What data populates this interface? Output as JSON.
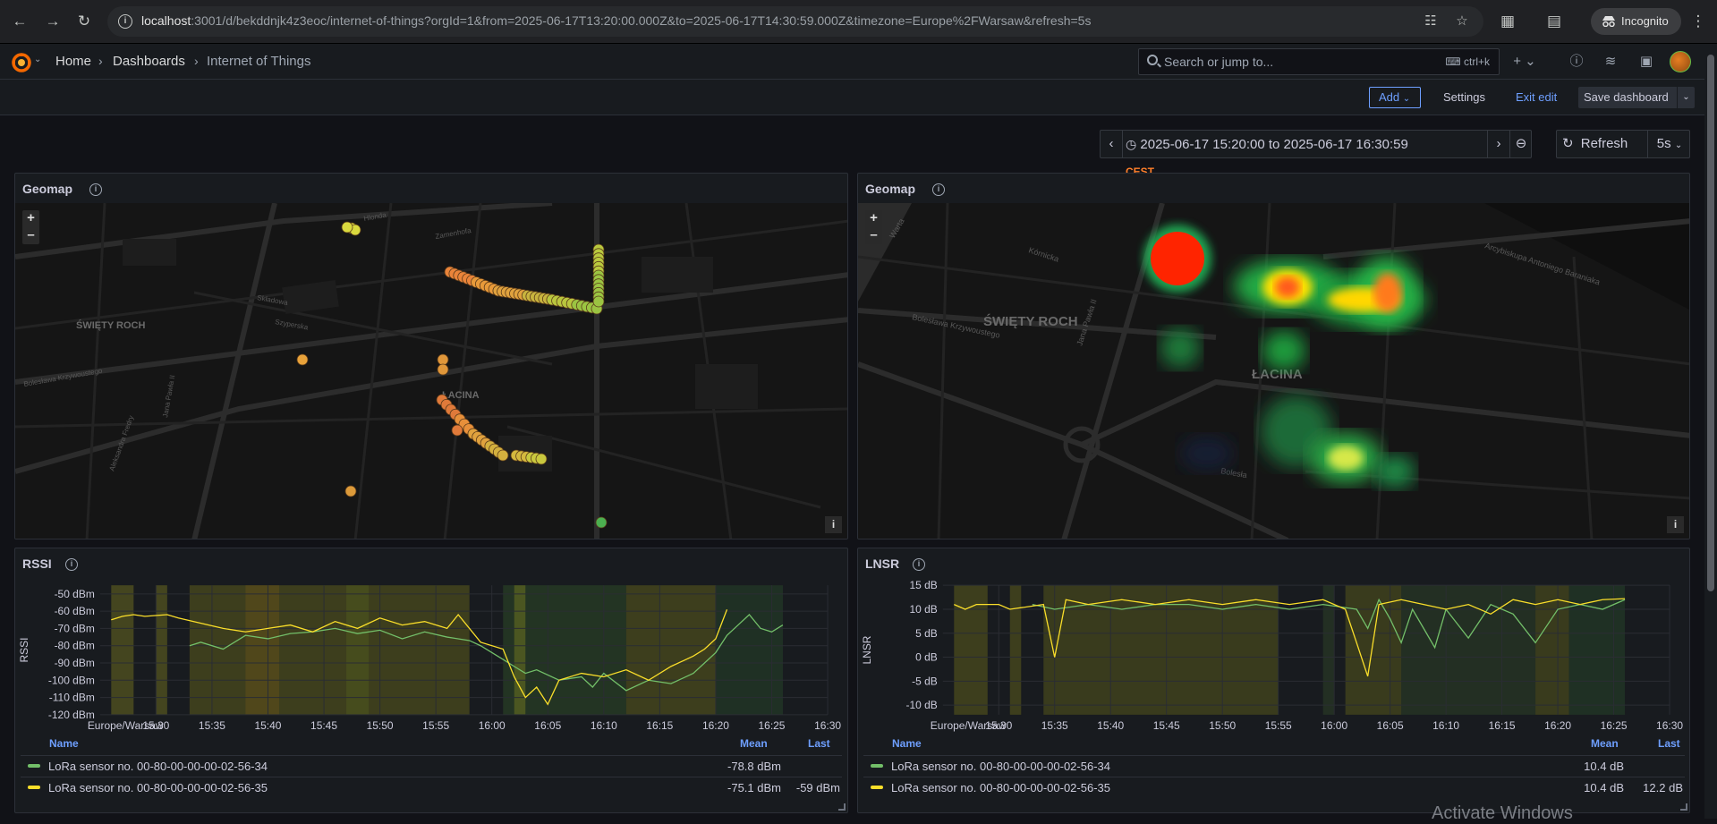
{
  "browser": {
    "url_host": "localhost",
    "url_rest": ":3001/d/bekddnjk4z3eoc/internet-of-things?orgId=1&from=2025-06-17T13:20:00.000Z&to=2025-06-17T14:30:59.000Z&timezone=Europe%2FWarsaw&refresh=5s",
    "incognito_label": "Incognito"
  },
  "topnav": {
    "breadcrumbs": [
      "Home",
      "Dashboards",
      "Internet of Things"
    ],
    "search_placeholder": "Search or jump to...",
    "search_shortcut": "ctrl+k"
  },
  "toolbar": {
    "add_label": "Add",
    "settings_label": "Settings",
    "exit_edit_label": "Exit edit",
    "save_label": "Save dashboard"
  },
  "timepicker": {
    "range": "2025-06-17 15:20:00 to 2025-06-17 16:30:59",
    "timezone": "CEST",
    "refresh_label": "Refresh",
    "refresh_interval": "5s"
  },
  "panels": {
    "geomap1": {
      "title": "Geomap",
      "labels": [
        "ŚWIĘTY ROCH",
        "ŁACINA",
        "Jana Pawła II",
        "Bolesława Krzywoustego",
        "Zamenhofa",
        "Hlonda",
        "Szyperska",
        "Składowa",
        "Aleksandra Fredry"
      ]
    },
    "geomap2": {
      "title": "Geomap",
      "labels": [
        "ŚWIĘTY ROCH",
        "ŁACINA",
        "Jana Pawła II",
        "Bolesława Krzywoustego",
        "Arcybiskupa Antoniego Baraniaka",
        "Warta",
        "Kórnicka",
        "Bolesła"
      ]
    },
    "rssi": {
      "title": "RSSI",
      "ylabel": "RSSI",
      "yticks": [
        "-50 dBm",
        "-60 dBm",
        "-70 dBm",
        "-80 dBm",
        "-90 dBm",
        "-100 dBm",
        "-110 dBm",
        "-120 dBm"
      ],
      "timezone_label": "Europe/Warsaw",
      "xticks": [
        "15:30",
        "15:35",
        "15:40",
        "15:45",
        "15:50",
        "15:55",
        "16:00",
        "16:05",
        "16:10",
        "16:15",
        "16:20",
        "16:25",
        "16:30"
      ],
      "legend_headers": {
        "name": "Name",
        "mean": "Mean",
        "last": "Last"
      },
      "series": [
        {
          "name": "LoRa sensor no. 00-80-00-00-00-02-56-34",
          "color": "#73bf69",
          "mean": "-78.8 dBm",
          "last": ""
        },
        {
          "name": "LoRa sensor no. 00-80-00-00-00-02-56-35",
          "color": "#fade2a",
          "mean": "-75.1 dBm",
          "last": "-59 dBm"
        }
      ]
    },
    "lnsr": {
      "title": "LNSR",
      "ylabel": "LNSR",
      "yticks": [
        "15 dB",
        "10 dB",
        "5 dB",
        "0 dB",
        "-5 dB",
        "-10 dB"
      ],
      "timezone_label": "Europe/Warsaw",
      "xticks": [
        "15:30",
        "15:35",
        "15:40",
        "15:45",
        "15:50",
        "15:55",
        "16:00",
        "16:05",
        "16:10",
        "16:15",
        "16:20",
        "16:25",
        "16:30"
      ],
      "legend_headers": {
        "name": "Name",
        "mean": "Mean",
        "last": "Last"
      },
      "series": [
        {
          "name": "LoRa sensor no. 00-80-00-00-00-02-56-34",
          "color": "#73bf69",
          "mean": "10.4 dB",
          "last": ""
        },
        {
          "name": "LoRa sensor no. 00-80-00-00-00-02-56-35",
          "color": "#fade2a",
          "mean": "10.4 dB",
          "last": "12.2 dB"
        }
      ]
    }
  },
  "chart_data": [
    {
      "type": "line",
      "title": "RSSI",
      "ylabel": "RSSI",
      "ylim": [
        -120,
        -45
      ],
      "xlim": [
        "15:25",
        "16:30"
      ],
      "series": [
        {
          "name": "LoRa sensor no. 00-80-00-00-00-02-56-34",
          "color": "#73bf69",
          "x": [
            "15:33",
            "15:34",
            "15:36",
            "15:38",
            "15:40",
            "15:42",
            "15:44",
            "15:46",
            "15:48",
            "15:50",
            "15:52",
            "15:54",
            "15:56",
            "15:58",
            "15:59",
            "16:01",
            "16:02",
            "16:03",
            "16:04",
            "16:06",
            "16:08",
            "16:09",
            "16:10",
            "16:12",
            "16:14",
            "16:16",
            "16:18",
            "16:19",
            "16:20",
            "16:21",
            "16:22",
            "16:23",
            "16:24",
            "16:25",
            "16:26"
          ],
          "y": [
            -80,
            -78,
            -82,
            -74,
            -76,
            -73,
            -72,
            -70,
            -73,
            -71,
            -76,
            -72,
            -75,
            -77,
            -80,
            -88,
            -92,
            -96,
            -94,
            -100,
            -98,
            -104,
            -96,
            -106,
            -100,
            -102,
            -96,
            -90,
            -84,
            -74,
            -68,
            -62,
            -70,
            -72,
            -68
          ]
        },
        {
          "name": "LoRa sensor no. 00-80-00-00-00-02-56-35",
          "color": "#fade2a",
          "x": [
            "15:26",
            "15:27",
            "15:28",
            "15:29",
            "15:31",
            "15:32",
            "15:36",
            "15:38",
            "15:40",
            "15:42",
            "15:44",
            "15:46",
            "15:48",
            "15:50",
            "15:52",
            "15:54",
            "15:56",
            "15:57",
            "15:59",
            "16:01",
            "16:02",
            "16:03",
            "16:04",
            "16:05",
            "16:06",
            "16:08",
            "16:10",
            "16:12",
            "16:14",
            "16:16",
            "16:18",
            "16:19",
            "16:20",
            "16:21"
          ],
          "y": [
            -65,
            -63,
            -62,
            -63,
            -62,
            -64,
            -70,
            -72,
            -70,
            -68,
            -72,
            -66,
            -70,
            -64,
            -68,
            -66,
            -70,
            -62,
            -78,
            -82,
            -98,
            -110,
            -104,
            -114,
            -100,
            -96,
            -98,
            -94,
            -100,
            -92,
            -86,
            -82,
            -76,
            -59
          ]
        }
      ],
      "threshold_bands": true
    },
    {
      "type": "line",
      "title": "LNSR",
      "ylabel": "LNSR",
      "ylim": [
        -12,
        15
      ],
      "xlim": [
        "15:25",
        "16:30"
      ],
      "series": [
        {
          "name": "LoRa sensor no. 00-80-00-00-00-02-56-34",
          "color": "#73bf69",
          "x": [
            "15:33",
            "15:35",
            "15:38",
            "15:41",
            "15:44",
            "15:47",
            "15:50",
            "15:53",
            "15:56",
            "15:59",
            "16:02",
            "16:03",
            "16:04",
            "16:05",
            "16:06",
            "16:07",
            "16:08",
            "16:09",
            "16:10",
            "16:12",
            "16:14",
            "16:16",
            "16:18",
            "16:20",
            "16:22",
            "16:24",
            "16:26"
          ],
          "y": [
            11,
            10,
            11,
            10,
            11,
            11,
            10,
            11,
            10,
            11,
            10,
            6,
            12,
            8,
            3,
            10,
            6,
            2,
            10,
            4,
            11,
            9,
            3,
            10,
            11,
            10,
            12
          ]
        },
        {
          "name": "LoRa sensor no. 00-80-00-00-00-02-56-35",
          "color": "#fade2a",
          "x": [
            "15:26",
            "15:27",
            "15:28",
            "15:30",
            "15:31",
            "15:34",
            "15:35",
            "15:36",
            "15:38",
            "15:41",
            "15:44",
            "15:47",
            "15:50",
            "15:53",
            "15:56",
            "15:59",
            "16:01",
            "16:02",
            "16:03",
            "16:04",
            "16:06",
            "16:08",
            "16:10",
            "16:12",
            "16:14",
            "16:16",
            "16:18",
            "16:20",
            "16:22",
            "16:24",
            "16:26"
          ],
          "y": [
            11,
            10,
            11,
            11,
            10,
            11,
            0,
            12,
            11,
            12,
            11,
            12,
            11,
            12,
            11,
            12,
            10,
            3,
            -4,
            11,
            12,
            11,
            10,
            11,
            9,
            12,
            11,
            12,
            11,
            12,
            12.2
          ]
        }
      ],
      "threshold_bands": true
    }
  ]
}
